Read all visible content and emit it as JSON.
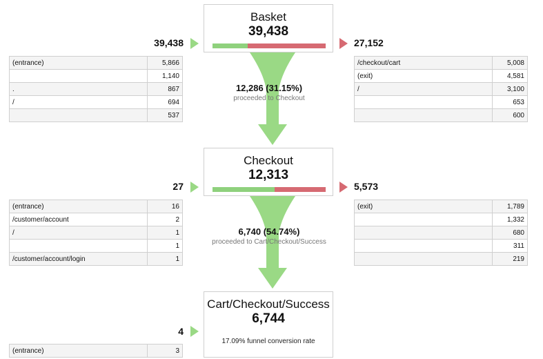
{
  "colors": {
    "green": "#9ad985",
    "bar_green": "#8fd17d",
    "bar_red": "#d66a72",
    "funnel_green": "#9ad985"
  },
  "steps": [
    {
      "name": "Basket",
      "value": "39,438",
      "entries": "39,438",
      "exits": "27,152",
      "continue_fraction": 0.3115,
      "proceed": "12,286 (31.15%)",
      "proceed_label": "proceeded to Checkout",
      "entries_table": [
        {
          "url": "(entrance)",
          "count": "5,866"
        },
        {
          "url": "",
          "count": "1,140"
        },
        {
          "url": ".",
          "count": "867"
        },
        {
          "url": "/",
          "count": "694"
        },
        {
          "url": "",
          "count": "537"
        }
      ],
      "exits_table": [
        {
          "url": "/checkout/cart",
          "count": "5,008"
        },
        {
          "url": "(exit)",
          "count": "4,581"
        },
        {
          "url": "/",
          "count": "3,100"
        },
        {
          "url": "",
          "count": "653"
        },
        {
          "url": "",
          "count": "600"
        }
      ]
    },
    {
      "name": "Checkout",
      "value": "12,313",
      "entries": "27",
      "exits": "5,573",
      "continue_fraction": 0.5474,
      "proceed": "6,740 (54.74%)",
      "proceed_label": "proceeded to Cart/Checkout/Success",
      "entries_table": [
        {
          "url": "(entrance)",
          "count": "16"
        },
        {
          "url": "/customer/account",
          "count": "2"
        },
        {
          "url": "/",
          "count": "1"
        },
        {
          "url": "",
          "count": "1"
        },
        {
          "url": "/customer/account/login",
          "count": "1"
        }
      ],
      "exits_table": [
        {
          "url": "(exit)",
          "count": "1,789"
        },
        {
          "url": "",
          "count": "1,332"
        },
        {
          "url": "",
          "count": "680"
        },
        {
          "url": "",
          "count": "311"
        },
        {
          "url": "",
          "count": "219"
        }
      ]
    },
    {
      "name": "Cart/Checkout/Success",
      "value": "6,744",
      "entries": "4",
      "conversion_note": "17.09% funnel conversion rate",
      "entries_table": [
        {
          "url": "(entrance)",
          "count": "3"
        }
      ]
    }
  ]
}
